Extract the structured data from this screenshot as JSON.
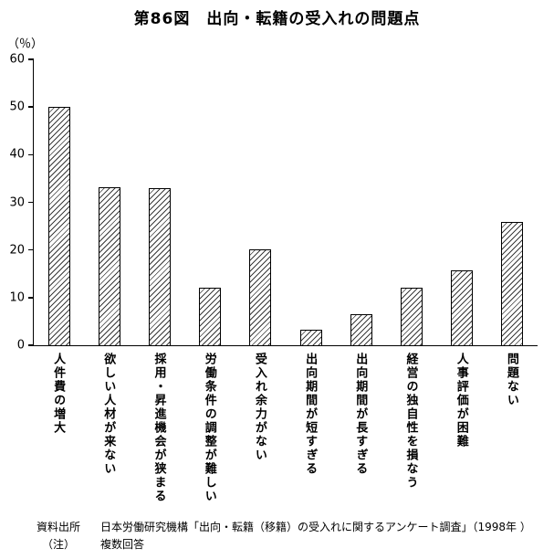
{
  "title": "第86図　出向・転籍の受入れの問題点",
  "chart_data": {
    "type": "bar",
    "title": "第86図　出向・転籍の受入れの問題点",
    "categories": [
      "人件費の増大",
      "欲しい人材が来ない",
      "採用・昇進機会が狭まる",
      "労働条件の調整が難しい",
      "受入れ余力がない",
      "出向期間が短すぎる",
      "出向期間が長すぎる",
      "経営の独自性を損なう",
      "人事評価が困難",
      "問題ない"
    ],
    "values": [
      50,
      33.2,
      32.9,
      12.1,
      20.1,
      3.3,
      6.5,
      12.1,
      15.7,
      25.9
    ],
    "ylabel": "（％）",
    "xlabel": "",
    "ylim": [
      0,
      60
    ],
    "yticks": [
      0,
      10,
      20,
      30,
      40,
      50,
      60
    ],
    "grid": false,
    "legend": "none",
    "bar_style": "diagonal-hatch"
  },
  "footer": {
    "source_label": "資料出所",
    "source_text": "日本労働研究機構「出向・転籍（移籍）の受入れに関するアンケート調査」（1998年 ）",
    "note_label": "（注）",
    "note_text": "複数回答"
  }
}
